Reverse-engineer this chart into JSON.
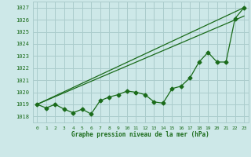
{
  "background_color": "#cde8e8",
  "grid_color": "#aacccc",
  "line_color": "#1a6b1a",
  "text_color": "#1a6b1a",
  "xlabel": "Graphe pression niveau de la mer (hPa)",
  "ylim": [
    1017.5,
    1027.5
  ],
  "xlim": [
    -0.5,
    23.5
  ],
  "yticks": [
    1018,
    1019,
    1020,
    1021,
    1022,
    1023,
    1024,
    1025,
    1026,
    1027
  ],
  "xticks": [
    0,
    1,
    2,
    3,
    4,
    5,
    6,
    7,
    8,
    9,
    10,
    11,
    12,
    13,
    14,
    15,
    16,
    17,
    18,
    19,
    20,
    21,
    22,
    23
  ],
  "series1_x": [
    0,
    1,
    2,
    3,
    4,
    5,
    6,
    7,
    8,
    9,
    10,
    11,
    12,
    13,
    14,
    15,
    16,
    17,
    18,
    19,
    20,
    21,
    22,
    23
  ],
  "series1_y": [
    1019.0,
    1018.7,
    1019.0,
    1018.6,
    1018.3,
    1018.6,
    1018.2,
    1019.3,
    1019.6,
    1019.8,
    1020.1,
    1020.0,
    1019.8,
    1019.2,
    1019.1,
    1020.3,
    1020.5,
    1021.2,
    1022.5,
    1023.3,
    1022.5,
    1022.5,
    1026.1,
    1027.0
  ],
  "trend1_x": [
    0,
    23
  ],
  "trend1_y": [
    1019.0,
    1027.0
  ],
  "trend2_x": [
    0,
    23
  ],
  "trend2_y": [
    1019.0,
    1026.3
  ],
  "marker": "D",
  "markersize": 2.5,
  "linewidth": 0.9
}
